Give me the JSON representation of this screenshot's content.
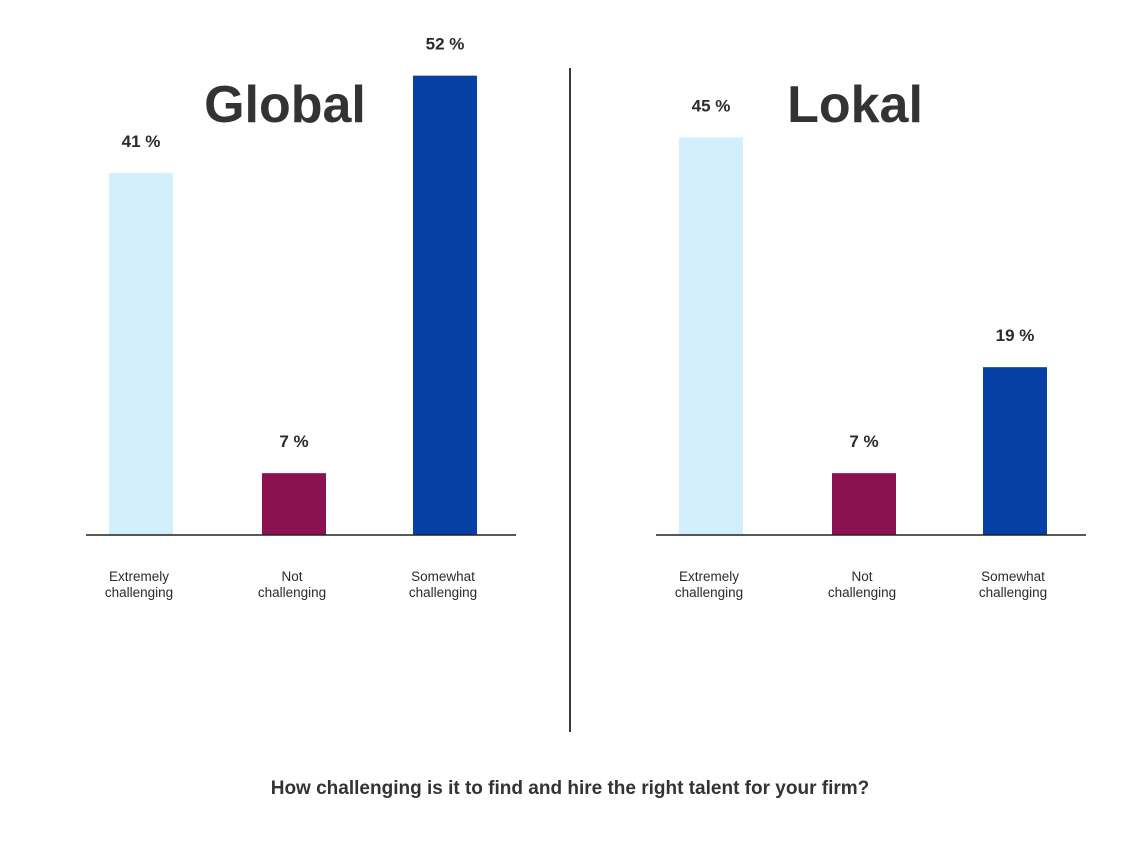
{
  "question": "How challenging is it to find and hire the right talent for your firm?",
  "chart_data": [
    {
      "type": "bar",
      "title": "Global",
      "categories": [
        [
          "Extremely",
          "challenging"
        ],
        [
          "Not",
          "challenging"
        ],
        [
          "Somewhat",
          "challenging"
        ]
      ],
      "values": [
        41,
        7,
        52
      ],
      "value_labels": [
        "41 %",
        "7 %",
        "52 %"
      ],
      "colors": [
        "#d3effb",
        "#8b1150",
        "#0640a5"
      ],
      "ylim": [
        0,
        60
      ],
      "grid": false,
      "legend": "none"
    },
    {
      "type": "bar",
      "title": "Lokal",
      "categories": [
        [
          "Extremely",
          "challenging"
        ],
        [
          "Not",
          "challenging"
        ],
        [
          "Somewhat",
          "challenging"
        ]
      ],
      "values": [
        45,
        7,
        19
      ],
      "value_labels": [
        "45 %",
        "7 %",
        "19 %"
      ],
      "colors": [
        "#d3effb",
        "#8b1150",
        "#0640a5"
      ],
      "ylim": [
        0,
        60
      ],
      "grid": false,
      "legend": "none"
    }
  ]
}
